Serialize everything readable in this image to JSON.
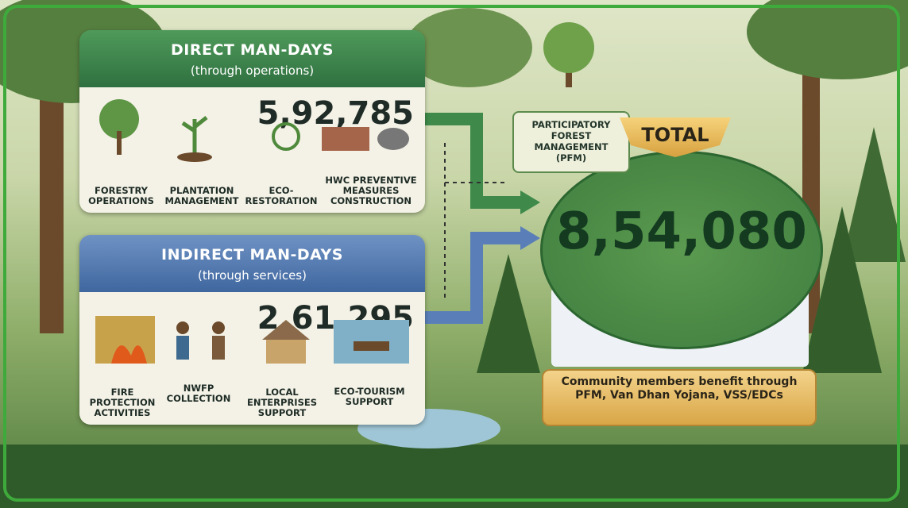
{
  "direct": {
    "title": "DIRECT MAN-DAYS",
    "subtitle": "(through operations)",
    "value": "5,92,785",
    "items": [
      "FORESTRY OPERATIONS",
      "PLANTATION MANAGEMENT",
      "ECO-RESTORATION",
      "HWC PREVENTIVE MEASURES CONSTRUCTION"
    ]
  },
  "indirect": {
    "title": "INDIRECT MAN-DAYS",
    "subtitle": "(through services)",
    "value": "2,61,295",
    "items": [
      "FIRE PROTECTION ACTIVITIES",
      "NWFP COLLECTION",
      "LOCAL ENTERPRISES SUPPORT",
      "ECO-TOURISM SUPPORT"
    ]
  },
  "pfm": {
    "label": "PARTICIPATORY FOREST MANAGEMENT (PFM)"
  },
  "total": {
    "badge": "TOTAL",
    "value": "8,54,080",
    "note": "Community members benefit through PFM, Van Dhan Yojana, VSS/EDCs"
  }
}
